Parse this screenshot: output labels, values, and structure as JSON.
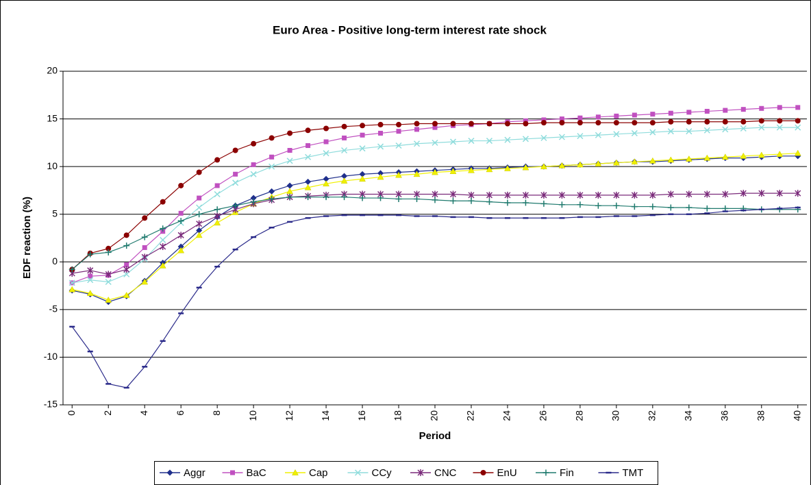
{
  "chart_data": {
    "type": "line",
    "title": "Euro Area - Positive long-term interest rate shock",
    "x_label": "Period",
    "y_label": "EDF reaction (%)",
    "x": [
      0,
      1,
      2,
      3,
      4,
      5,
      6,
      7,
      8,
      9,
      10,
      11,
      12,
      13,
      14,
      15,
      16,
      17,
      18,
      19,
      20,
      21,
      22,
      23,
      24,
      25,
      26,
      27,
      28,
      29,
      30,
      31,
      32,
      33,
      34,
      35,
      36,
      37,
      38,
      39,
      40
    ],
    "xlim": [
      -0.5,
      40.5
    ],
    "xticks": [
      0,
      2,
      4,
      6,
      8,
      10,
      12,
      14,
      16,
      18,
      20,
      22,
      24,
      26,
      28,
      30,
      32,
      34,
      36,
      38,
      40
    ],
    "ylim": [
      -15,
      20
    ],
    "yticks": [
      -15,
      -10,
      -5,
      0,
      5,
      10,
      15,
      20
    ],
    "grid": true,
    "legend": "bottom",
    "series": [
      {
        "name": "Aggr",
        "color": "#1f2f8c",
        "marker": "diamond",
        "values": [
          -3.0,
          -3.4,
          -4.2,
          -3.6,
          -2.0,
          -0.1,
          1.6,
          3.3,
          4.7,
          5.9,
          6.7,
          7.4,
          8.0,
          8.4,
          8.7,
          9.0,
          9.2,
          9.3,
          9.4,
          9.5,
          9.6,
          9.7,
          9.8,
          9.8,
          9.9,
          10.0,
          10.0,
          10.1,
          10.2,
          10.3,
          10.4,
          10.5,
          10.5,
          10.6,
          10.7,
          10.8,
          10.9,
          10.9,
          11.0,
          11.1,
          11.1
        ]
      },
      {
        "name": "BaC",
        "color": "#c050c0",
        "marker": "square",
        "values": [
          -2.2,
          -1.5,
          -1.4,
          -0.3,
          1.5,
          3.2,
          5.1,
          6.7,
          8.0,
          9.2,
          10.2,
          11.0,
          11.7,
          12.2,
          12.6,
          13.0,
          13.3,
          13.5,
          13.7,
          13.9,
          14.1,
          14.3,
          14.4,
          14.5,
          14.7,
          14.8,
          14.9,
          15.0,
          15.1,
          15.2,
          15.3,
          15.4,
          15.5,
          15.6,
          15.7,
          15.8,
          15.9,
          16.0,
          16.1,
          16.2,
          16.2
        ]
      },
      {
        "name": "Cap",
        "color": "#f0f000",
        "marker": "triangle",
        "values": [
          -2.9,
          -3.3,
          -4.0,
          -3.5,
          -2.1,
          -0.4,
          1.2,
          2.8,
          4.1,
          5.2,
          6.1,
          6.8,
          7.4,
          7.8,
          8.2,
          8.5,
          8.7,
          8.9,
          9.1,
          9.2,
          9.4,
          9.5,
          9.6,
          9.7,
          9.8,
          9.9,
          10.0,
          10.1,
          10.2,
          10.3,
          10.4,
          10.5,
          10.6,
          10.7,
          10.8,
          10.9,
          11.0,
          11.1,
          11.2,
          11.3,
          11.4
        ]
      },
      {
        "name": "CCy",
        "color": "#8fdcdc",
        "marker": "x",
        "values": [
          -2.2,
          -1.9,
          -2.1,
          -1.3,
          0.3,
          2.3,
          4.1,
          5.7,
          7.1,
          8.3,
          9.2,
          10.0,
          10.6,
          11.0,
          11.4,
          11.7,
          11.9,
          12.1,
          12.2,
          12.4,
          12.5,
          12.6,
          12.7,
          12.7,
          12.8,
          12.9,
          13.0,
          13.1,
          13.2,
          13.3,
          13.4,
          13.5,
          13.6,
          13.7,
          13.7,
          13.8,
          13.9,
          14.0,
          14.1,
          14.1,
          14.1
        ]
      },
      {
        "name": "CNC",
        "color": "#7a2a7a",
        "marker": "star",
        "values": [
          -1.2,
          -0.9,
          -1.3,
          -0.8,
          0.5,
          1.6,
          2.8,
          4.0,
          4.8,
          5.5,
          6.1,
          6.5,
          6.8,
          6.9,
          7.0,
          7.1,
          7.1,
          7.1,
          7.1,
          7.1,
          7.1,
          7.1,
          7.0,
          7.0,
          7.0,
          7.0,
          7.0,
          7.0,
          7.0,
          7.0,
          7.0,
          7.0,
          7.0,
          7.1,
          7.1,
          7.1,
          7.1,
          7.2,
          7.2,
          7.2,
          7.2
        ]
      },
      {
        "name": "EnU",
        "color": "#8b0000",
        "marker": "circle",
        "values": [
          -0.8,
          0.9,
          1.4,
          2.8,
          4.6,
          6.3,
          8.0,
          9.4,
          10.7,
          11.7,
          12.4,
          13.0,
          13.5,
          13.8,
          14.0,
          14.2,
          14.3,
          14.4,
          14.4,
          14.5,
          14.5,
          14.5,
          14.5,
          14.5,
          14.5,
          14.5,
          14.6,
          14.6,
          14.6,
          14.6,
          14.6,
          14.6,
          14.6,
          14.7,
          14.7,
          14.7,
          14.7,
          14.7,
          14.8,
          14.8,
          14.8
        ]
      },
      {
        "name": "Fin",
        "color": "#1f7a6e",
        "marker": "plus",
        "values": [
          -0.8,
          0.8,
          1.0,
          1.7,
          2.6,
          3.5,
          4.3,
          5.0,
          5.5,
          5.9,
          6.3,
          6.6,
          6.8,
          6.8,
          6.8,
          6.8,
          6.7,
          6.7,
          6.6,
          6.6,
          6.5,
          6.4,
          6.4,
          6.3,
          6.2,
          6.2,
          6.1,
          6.0,
          6.0,
          5.9,
          5.9,
          5.8,
          5.8,
          5.7,
          5.7,
          5.6,
          5.6,
          5.6,
          5.5,
          5.5,
          5.5
        ]
      },
      {
        "name": "TMT",
        "color": "#2a2a8a",
        "marker": "dash",
        "values": [
          -6.8,
          -9.4,
          -12.8,
          -13.2,
          -11.0,
          -8.3,
          -5.4,
          -2.7,
          -0.5,
          1.3,
          2.6,
          3.6,
          4.2,
          4.6,
          4.8,
          4.9,
          4.9,
          4.9,
          4.9,
          4.8,
          4.8,
          4.7,
          4.7,
          4.6,
          4.6,
          4.6,
          4.6,
          4.6,
          4.7,
          4.7,
          4.8,
          4.8,
          4.9,
          5.0,
          5.0,
          5.1,
          5.3,
          5.4,
          5.5,
          5.6,
          5.7
        ]
      }
    ]
  }
}
